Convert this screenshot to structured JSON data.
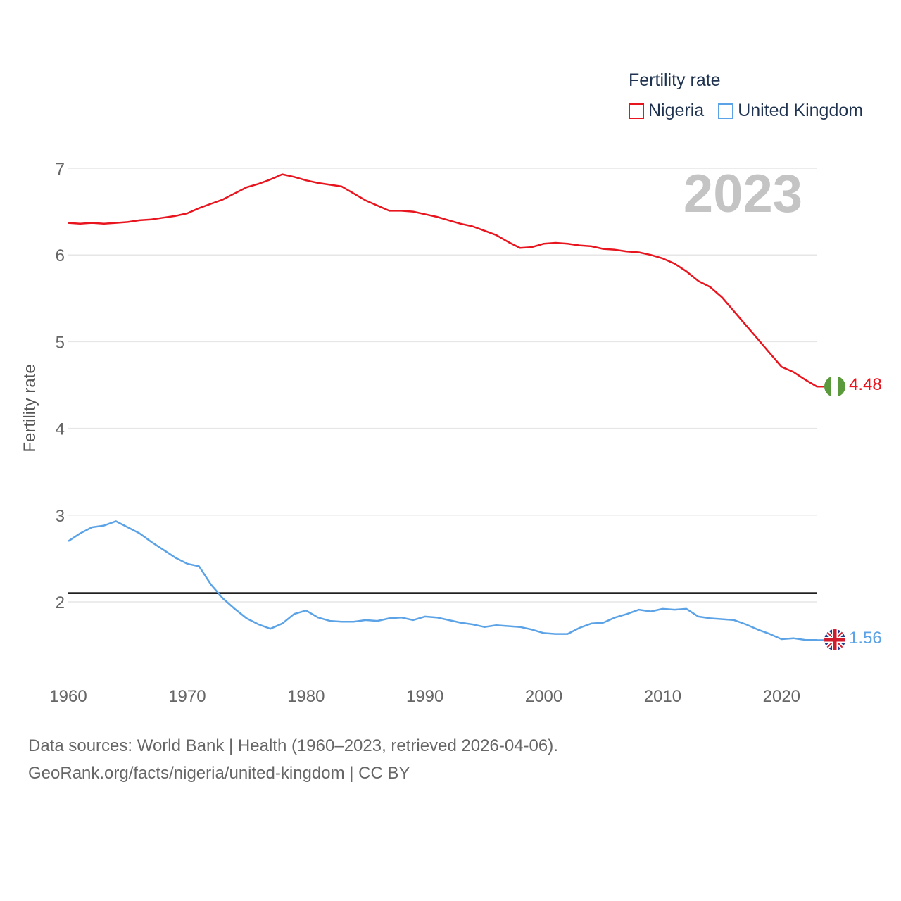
{
  "legend": {
    "title": "Fertility rate",
    "items": [
      {
        "label": "Nigeria",
        "color": "#e8141e"
      },
      {
        "label": "United Kingdom",
        "color": "#5ba3e6"
      }
    ]
  },
  "current_year": "2023",
  "end_labels": {
    "nigeria": {
      "value": "4.48",
      "flag": "nigeria-flag-icon"
    },
    "uk": {
      "value": "1.56",
      "flag": "uk-flag-icon"
    }
  },
  "source": {
    "line1": "Data sources: World Bank | Health (1960–2023, retrieved 2026-04-06).",
    "line2": "GeoRank.org/facts/nigeria/united-kingdom | CC BY"
  },
  "chart_data": {
    "type": "line",
    "title": "",
    "xlabel": "",
    "ylabel": "Fertility rate",
    "xlim": [
      1960,
      2023
    ],
    "ylim": [
      1.3,
      7.2
    ],
    "x_ticks": [
      1960,
      1970,
      1980,
      1990,
      2000,
      2010,
      2020
    ],
    "y_ticks": [
      2,
      3,
      4,
      5,
      6,
      7
    ],
    "grid": true,
    "reference_line": 2.1,
    "x": [
      1960,
      1961,
      1962,
      1963,
      1964,
      1965,
      1966,
      1967,
      1968,
      1969,
      1970,
      1971,
      1972,
      1973,
      1974,
      1975,
      1976,
      1977,
      1978,
      1979,
      1980,
      1981,
      1982,
      1983,
      1984,
      1985,
      1986,
      1987,
      1988,
      1989,
      1990,
      1991,
      1992,
      1993,
      1994,
      1995,
      1996,
      1997,
      1998,
      1999,
      2000,
      2001,
      2002,
      2003,
      2004,
      2005,
      2006,
      2007,
      2008,
      2009,
      2010,
      2011,
      2012,
      2013,
      2014,
      2015,
      2016,
      2017,
      2018,
      2019,
      2020,
      2021,
      2022,
      2023
    ],
    "series": [
      {
        "name": "Nigeria",
        "color": "#e8141e",
        "values": [
          6.37,
          6.36,
          6.37,
          6.36,
          6.37,
          6.38,
          6.4,
          6.41,
          6.43,
          6.45,
          6.48,
          6.54,
          6.59,
          6.64,
          6.71,
          6.78,
          6.82,
          6.87,
          6.93,
          6.9,
          6.86,
          6.83,
          6.81,
          6.79,
          6.71,
          6.63,
          6.57,
          6.51,
          6.51,
          6.5,
          6.47,
          6.44,
          6.4,
          6.36,
          6.33,
          6.28,
          6.23,
          6.15,
          6.08,
          6.09,
          6.13,
          6.14,
          6.13,
          6.11,
          6.1,
          6.07,
          6.06,
          6.04,
          6.03,
          6.0,
          5.96,
          5.9,
          5.81,
          5.7,
          5.63,
          5.51,
          5.35,
          5.19,
          5.03,
          4.87,
          4.71,
          4.65,
          4.56,
          4.48
        ]
      },
      {
        "name": "United Kingdom",
        "color": "#5ba3e6",
        "values": [
          2.7,
          2.79,
          2.86,
          2.88,
          2.93,
          2.86,
          2.79,
          2.69,
          2.6,
          2.51,
          2.44,
          2.41,
          2.2,
          2.04,
          1.92,
          1.81,
          1.74,
          1.69,
          1.75,
          1.86,
          1.9,
          1.82,
          1.78,
          1.77,
          1.77,
          1.79,
          1.78,
          1.81,
          1.82,
          1.79,
          1.83,
          1.82,
          1.79,
          1.76,
          1.74,
          1.71,
          1.73,
          1.72,
          1.71,
          1.68,
          1.64,
          1.63,
          1.63,
          1.7,
          1.75,
          1.76,
          1.82,
          1.86,
          1.91,
          1.89,
          1.92,
          1.91,
          1.92,
          1.83,
          1.81,
          1.8,
          1.79,
          1.74,
          1.68,
          1.63,
          1.57,
          1.58,
          1.56,
          1.56
        ]
      }
    ]
  }
}
